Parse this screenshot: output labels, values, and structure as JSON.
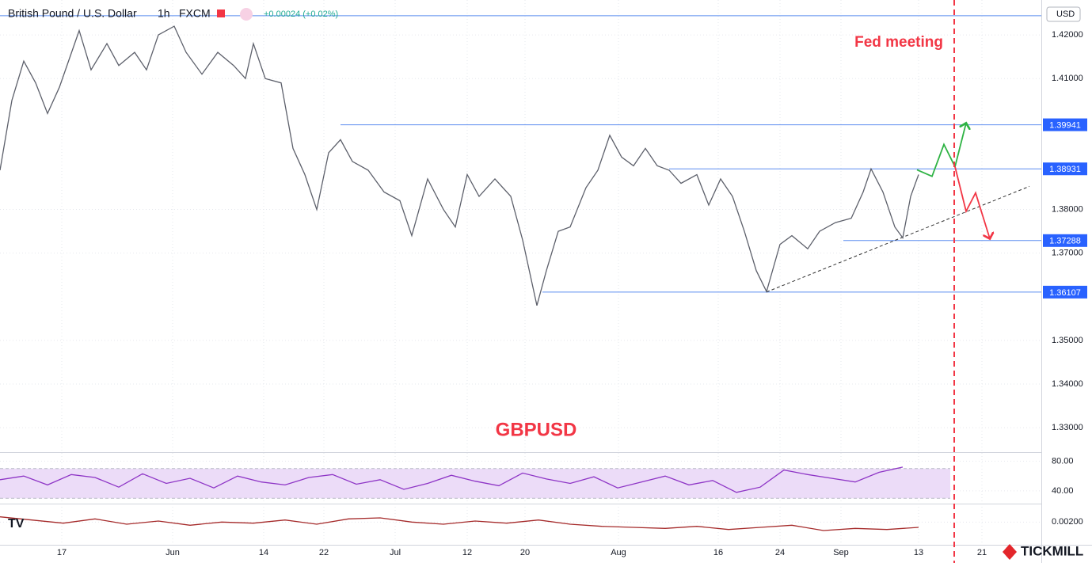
{
  "header": {
    "symbol": "British Pound / U.S. Dollar",
    "interval": "1h",
    "source": "FXCM",
    "change": "+0.00024 (+0.02%)",
    "currency": "USD",
    "brand": "TICKMILL"
  },
  "chart_data": [
    {
      "type": "line",
      "title": "GBPUSD",
      "annotation": "Fed meeting",
      "event_x": 120.5,
      "x": [
        0,
        1.5,
        3,
        4.5,
        6,
        7.5,
        10,
        11.5,
        13.5,
        15,
        17,
        18.5,
        20,
        22,
        23.5,
        25.5,
        27.5,
        29.5,
        31,
        32,
        33.5,
        35.5,
        37,
        38.5,
        40,
        41.5,
        43,
        44.5,
        46.5,
        48.5,
        50.5,
        52,
        54,
        56,
        57.5,
        59,
        60.5,
        62.5,
        64.5,
        66,
        67.8,
        69,
        70.5,
        72,
        74,
        75.5,
        77,
        78.5,
        80,
        81.5,
        83,
        84.5,
        86,
        88,
        89.5,
        91,
        92.5,
        94,
        95.5,
        96.8,
        98.5,
        100,
        102,
        103.5,
        105.5,
        107.5,
        109,
        110,
        111.5,
        113,
        114,
        115,
        116
      ],
      "series": [
        {
          "color": "#5d606b",
          "values": [
            1.389,
            1.405,
            1.414,
            1.409,
            1.402,
            1.408,
            1.421,
            1.412,
            1.418,
            1.413,
            1.416,
            1.412,
            1.42,
            1.422,
            1.416,
            1.411,
            1.416,
            1.413,
            1.41,
            1.418,
            1.41,
            1.409,
            1.394,
            1.388,
            1.38,
            1.393,
            1.396,
            1.391,
            1.389,
            1.384,
            1.382,
            1.374,
            1.387,
            1.38,
            1.376,
            1.388,
            1.383,
            1.387,
            1.383,
            1.373,
            1.358,
            1.366,
            1.375,
            1.376,
            1.385,
            1.389,
            1.397,
            1.392,
            1.39,
            1.394,
            1.39,
            1.389,
            1.386,
            1.388,
            1.381,
            1.387,
            1.383,
            1.375,
            1.366,
            1.3612,
            1.372,
            1.374,
            1.371,
            1.375,
            1.377,
            1.378,
            1.384,
            1.3893,
            1.384,
            1.376,
            1.3735,
            1.383,
            1.388
          ]
        }
      ],
      "current_price": 1.4244,
      "levels": [
        {
          "value": 1.39941,
          "label": "1.39941",
          "start": 43
        },
        {
          "value": 1.38931,
          "label": "1.38931",
          "start": 84.5
        },
        {
          "value": 1.37288,
          "label": "1.37288",
          "start": 106.5
        },
        {
          "value": 1.36107,
          "label": "1.36107",
          "start": 68.5
        }
      ],
      "trendline": {
        "x": [
          96.8,
          130
        ],
        "y": [
          1.3611,
          1.3853
        ]
      },
      "projections": [
        {
          "color": "#2fb344",
          "x": [
            115.8,
            117.7,
            119.2,
            120.6,
            122
          ],
          "y": [
            1.3891,
            1.3876,
            1.3949,
            1.3898,
            1.3998
          ]
        },
        {
          "color": "#f23645",
          "x": [
            120.6,
            122,
            123.2,
            125
          ],
          "y": [
            1.3898,
            1.3796,
            1.3838,
            1.3733
          ]
        }
      ],
      "xlim": [
        0,
        131.5
      ],
      "ylim": [
        1.3244,
        1.428
      ],
      "xticks": [
        {
          "value": 7.8,
          "label": "17"
        },
        {
          "value": 21.8,
          "label": "Jun"
        },
        {
          "value": 33.3,
          "label": "14"
        },
        {
          "value": 40.9,
          "label": "22"
        },
        {
          "value": 49.9,
          "label": "Jul"
        },
        {
          "value": 59,
          "label": "12"
        },
        {
          "value": 66.3,
          "label": "20"
        },
        {
          "value": 78.1,
          "label": "Aug"
        },
        {
          "value": 90.7,
          "label": "16"
        },
        {
          "value": 98.5,
          "label": "24"
        },
        {
          "value": 106.2,
          "label": "Sep"
        },
        {
          "value": 116,
          "label": "13"
        },
        {
          "value": 124,
          "label": "21"
        }
      ],
      "yticks": [
        {
          "value": 1.42,
          "label": "1.42000"
        },
        {
          "value": 1.41,
          "label": "1.41000"
        },
        {
          "value": 1.38,
          "label": "1.38000"
        },
        {
          "value": 1.37,
          "label": "1.37000"
        },
        {
          "value": 1.35,
          "label": "1.35000"
        },
        {
          "value": 1.34,
          "label": "1.34000"
        },
        {
          "value": 1.33,
          "label": "1.33000"
        }
      ],
      "grid": true
    },
    {
      "type": "line",
      "band": [
        30,
        70
      ],
      "band_color": "#ecdcf8",
      "x": [
        0,
        3,
        6,
        9,
        12,
        15,
        18,
        21,
        24,
        27,
        30,
        33,
        36,
        39,
        42,
        45,
        48,
        51,
        54,
        57,
        60,
        63,
        66,
        69,
        72,
        75,
        78,
        81,
        84,
        87,
        90,
        93,
        96,
        99,
        102,
        105,
        108,
        111,
        114
      ],
      "series": [
        {
          "color": "#8e35c6",
          "values": [
            55,
            60,
            48,
            62,
            58,
            45,
            63,
            50,
            57,
            44,
            60,
            52,
            48,
            58,
            62,
            49,
            55,
            42,
            50,
            61,
            53,
            47,
            64,
            56,
            50,
            59,
            44,
            52,
            60,
            48,
            54,
            38,
            45,
            68,
            62,
            57,
            52,
            65,
            72
          ]
        }
      ],
      "xlim": [
        0,
        131.5
      ],
      "ylim": [
        25,
        90
      ],
      "yticks": [
        {
          "value": 80,
          "label": "80.00"
        },
        {
          "value": 40,
          "label": "40.00"
        }
      ]
    },
    {
      "type": "line",
      "x": [
        0,
        4,
        8,
        12,
        16,
        20,
        24,
        28,
        32,
        36,
        40,
        44,
        48,
        52,
        56,
        60,
        64,
        68,
        72,
        76,
        80,
        84,
        88,
        92,
        96,
        100,
        104,
        108,
        112,
        116
      ],
      "series": [
        {
          "color": "#a52a2a",
          "values": [
            0.0025,
            0.0022,
            0.0019,
            0.0023,
            0.0018,
            0.0021,
            0.0017,
            0.002,
            0.0019,
            0.0022,
            0.0018,
            0.0023,
            0.0024,
            0.002,
            0.0018,
            0.0021,
            0.0019,
            0.0022,
            0.0018,
            0.0016,
            0.0015,
            0.0014,
            0.0016,
            0.0013,
            0.0015,
            0.0017,
            0.0012,
            0.0014,
            0.0013,
            0.0015
          ]
        }
      ],
      "xlim": [
        0,
        131.5
      ],
      "ylim": [
        0,
        0.0036
      ],
      "yticks": [
        {
          "value": 0.002,
          "label": "0.00200"
        }
      ]
    }
  ]
}
